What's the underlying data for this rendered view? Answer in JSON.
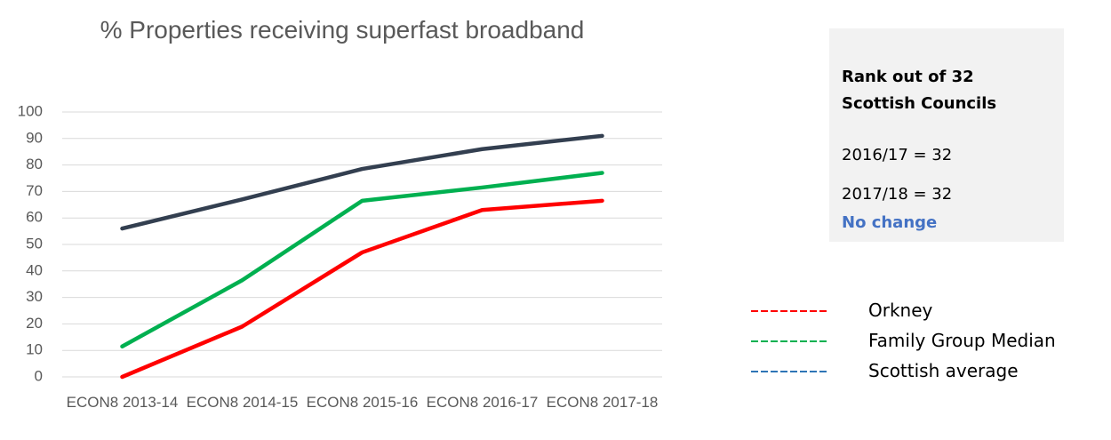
{
  "chart_data": {
    "type": "line",
    "title": "% Properties receiving superfast broadband",
    "categories": [
      "ECON8 2013-14",
      "ECON8 2014-15",
      "ECON8 2015-16",
      "ECON8 2016-17",
      "ECON8 2017-18"
    ],
    "series": [
      {
        "name": "Orkney",
        "color": "#ff0000",
        "legend_color": "#ff0000",
        "values": [
          0,
          19,
          47,
          63,
          66.5
        ]
      },
      {
        "name": "Family Group Median",
        "color": "#00b050",
        "legend_color": "#00b050",
        "values": [
          11.5,
          36.5,
          66.5,
          71.5,
          77
        ]
      },
      {
        "name": "Scottish average",
        "color": "#333f50",
        "legend_color": "#2e75b6",
        "values": [
          56,
          67,
          78.5,
          86,
          91
        ]
      }
    ],
    "ylim": [
      0,
      100
    ],
    "yticks": [
      0,
      10,
      20,
      30,
      40,
      50,
      60,
      70,
      80,
      90,
      100
    ],
    "grid": true,
    "legend": "right"
  },
  "rank_box": {
    "heading": "Rank out of 32 Scottish Councils",
    "lines": [
      "2016/17 = 32",
      "2017/18 = 32"
    ],
    "status": "No change"
  }
}
